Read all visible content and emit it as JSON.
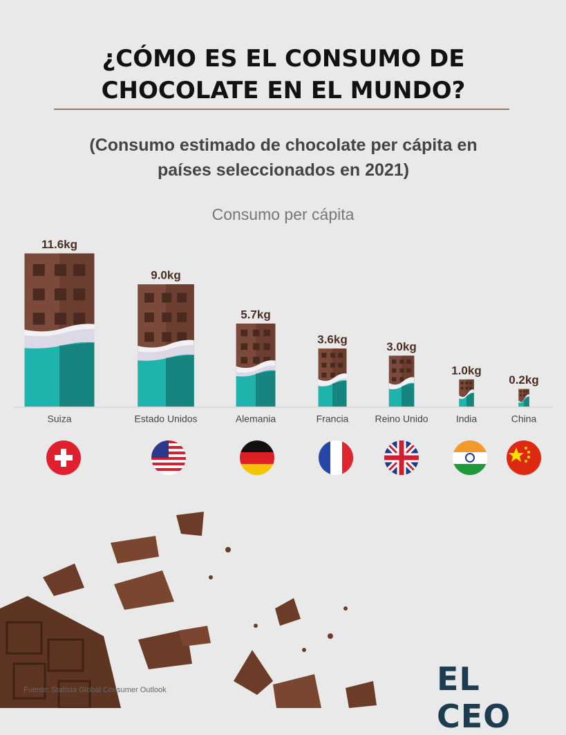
{
  "chart_data": {
    "type": "bar",
    "title": "¿CÓMO ES EL CONSUMO DE CHOCOLATE EN EL MUNDO?",
    "subtitle": "(Consumo estimado de chocolate per cápita en países seleccionados en 2021)",
    "y_label": "Consumo per cápita",
    "categories": [
      "Suiza",
      "Estado Unidos",
      "Alemania",
      "Francia",
      "Reino Unido",
      "India",
      "China"
    ],
    "values": [
      11.6,
      9.0,
      5.7,
      3.6,
      3.0,
      1.0,
      0.2
    ],
    "value_labels": [
      "11.6kg",
      "9.0kg",
      "5.7kg",
      "3.6kg",
      "3.0kg",
      "1.0kg",
      "0.2kg"
    ],
    "color": "#7b4a3a",
    "source": "Fuente: Statista Global Consumer Outlook",
    "brand": "EL CEO"
  }
}
